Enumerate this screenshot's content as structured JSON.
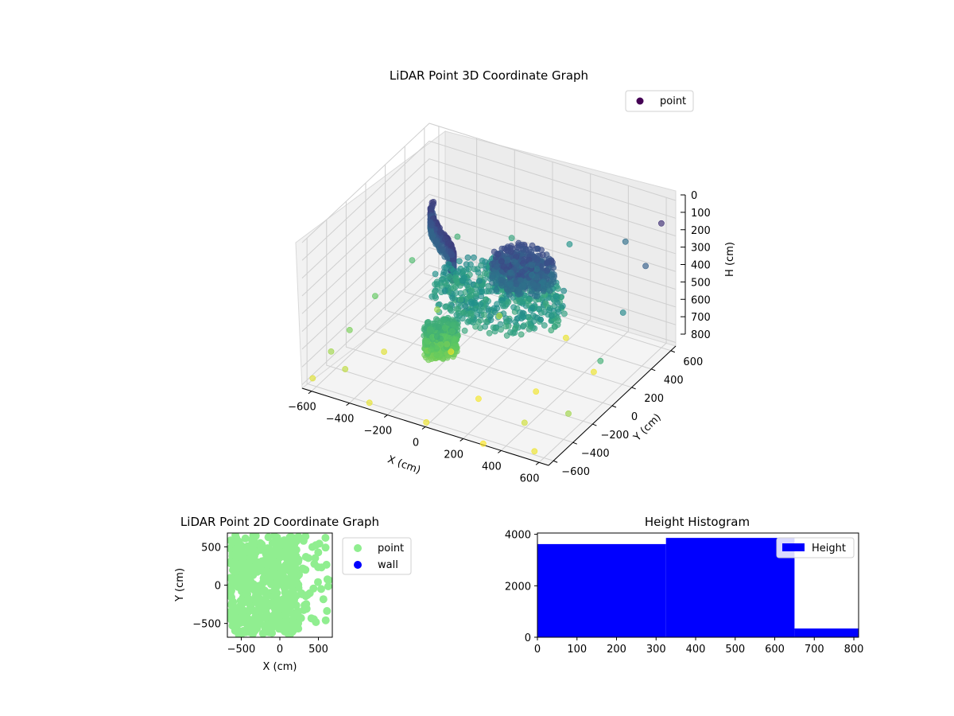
{
  "chart_data": [
    {
      "type": "scatter",
      "title": "LiDAR Point 3D Coordinate Graph",
      "xlabel": "X (cm)",
      "ylabel": "Y (cm)",
      "zlabel": "H (cm)",
      "x_ticks": [
        -600,
        -400,
        -200,
        0,
        200,
        400,
        600
      ],
      "y_ticks": [
        -600,
        -400,
        -200,
        0,
        200,
        400,
        600
      ],
      "h_ticks": [
        0,
        100,
        200,
        300,
        400,
        500,
        600,
        700,
        800
      ],
      "xlim": [
        -650,
        650
      ],
      "ylim": [
        -650,
        650
      ],
      "hlim": [
        0,
        820
      ],
      "h_axis_inverted": true,
      "colormap": "viridis (by height)",
      "grid": true,
      "legend": {
        "placement": "top-right",
        "entries": [
          "point"
        ]
      },
      "series": [
        {
          "name": "point",
          "color": "#440154",
          "clusters": [
            {
              "kind": "dense-arc",
              "x": [
                -420,
                -100
              ],
              "y": [
                -200,
                250
              ],
              "h": [
                150,
                280
              ]
            },
            {
              "kind": "dense-blob",
              "x": [
                -300,
                350
              ],
              "y": [
                -250,
                350
              ],
              "h": [
                380,
                500
              ]
            },
            {
              "kind": "dense-blob",
              "x": [
                0,
                300
              ],
              "y": [
                -100,
                200
              ],
              "h": [
                180,
                320
              ]
            },
            {
              "kind": "dense-blob",
              "x": [
                -200,
                -50
              ],
              "y": [
                -350,
                -150
              ],
              "h": [
                500,
                650
              ]
            }
          ],
          "sparse_points": [
            [
              -620,
              -600,
              780
            ],
            [
              -600,
              -450,
              700
            ],
            [
              -580,
              -300,
              650
            ],
            [
              -600,
              0,
              620
            ],
            [
              -560,
              300,
              560
            ],
            [
              -450,
              550,
              520
            ],
            [
              -200,
              620,
              480
            ],
            [
              100,
              630,
              420
            ],
            [
              400,
              620,
              300
            ],
            [
              600,
              600,
              120
            ],
            [
              620,
              400,
              250
            ],
            [
              630,
              150,
              380
            ],
            [
              640,
              -100,
              520
            ],
            [
              600,
              -350,
              700
            ],
            [
              550,
              -600,
              800
            ],
            [
              300,
              -640,
              820
            ],
            [
              0,
              -640,
              800
            ],
            [
              -300,
              -640,
              790
            ],
            [
              -450,
              -200,
              780
            ],
            [
              -200,
              0,
              800
            ],
            [
              100,
              -300,
              810
            ],
            [
              300,
              -100,
              805
            ],
            [
              450,
              200,
              800
            ],
            [
              200,
              400,
              795
            ],
            [
              -100,
              300,
              720
            ],
            [
              -350,
              150,
              690
            ],
            [
              420,
              -450,
              760
            ],
            [
              -500,
              -500,
              740
            ]
          ]
        }
      ]
    },
    {
      "type": "scatter",
      "title": "LiDAR Point 2D Coordinate Graph",
      "xlabel": "X (cm)",
      "ylabel": "Y (cm)",
      "x_ticks": [
        -500,
        0,
        500
      ],
      "y_ticks": [
        -500,
        0,
        500
      ],
      "xlim": [
        -680,
        680
      ],
      "ylim": [
        -680,
        680
      ],
      "grid": false,
      "legend": {
        "placement": "outside-right",
        "entries": [
          "point",
          "wall"
        ]
      },
      "series": [
        {
          "name": "point",
          "color": "#90ee90",
          "regions": [
            {
              "x": [
                -650,
                250
              ],
              "y": [
                -650,
                650
              ]
            },
            {
              "x": [
                250,
                650
              ],
              "y": [
                -500,
                650
              ],
              "sparse": true
            }
          ]
        },
        {
          "name": "wall",
          "color": "#0000ff",
          "points": []
        }
      ]
    },
    {
      "type": "bar",
      "title": "Height Histogram",
      "x_ticks": [
        0,
        100,
        200,
        300,
        400,
        500,
        600,
        700,
        800
      ],
      "y_ticks": [
        0,
        2000,
        4000
      ],
      "xlim": [
        0,
        812
      ],
      "ylim": [
        0,
        4050
      ],
      "bin_edges": [
        0,
        325,
        650,
        812
      ],
      "values": [
        3620,
        3860,
        340
      ],
      "color": "#0000ff",
      "legend": {
        "placement": "top-right",
        "entries": [
          "Height"
        ]
      },
      "series": [
        {
          "name": "Height",
          "values": [
            3620,
            3860,
            340
          ]
        }
      ]
    }
  ]
}
